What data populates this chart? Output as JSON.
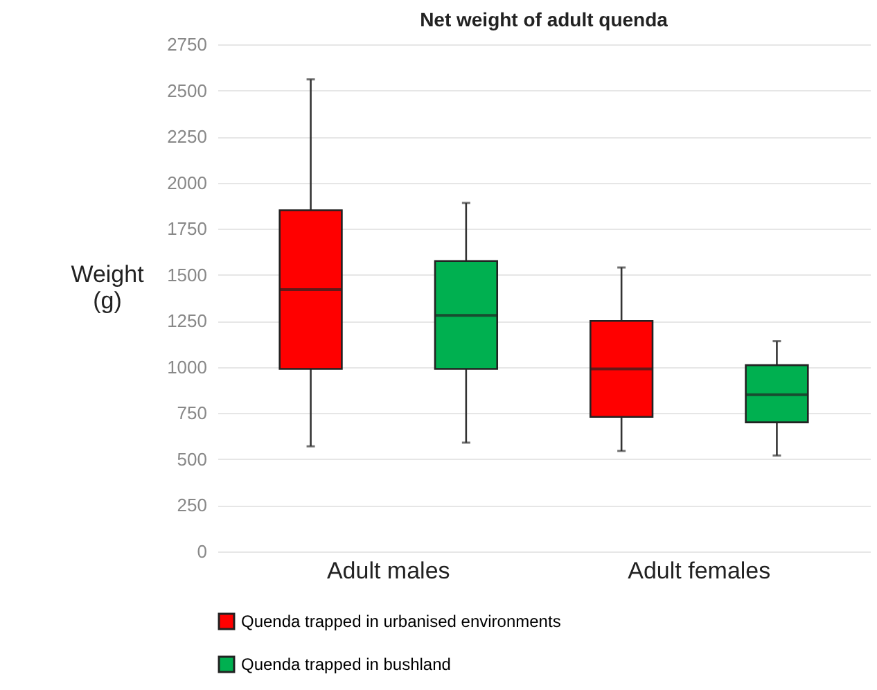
{
  "chart_data": {
    "type": "box",
    "title": "Net weight of adult quenda",
    "ylabel": "Weight\n(g)",
    "categories": [
      "Adult males",
      "Adult females"
    ],
    "series": [
      {
        "name": "Quenda trapped in urbanised environments",
        "color": "#ff0000",
        "boxes": [
          {
            "low": 570,
            "q1": 990,
            "median": 1420,
            "q3": 1850,
            "high": 2560
          },
          {
            "low": 545,
            "q1": 730,
            "median": 990,
            "q3": 1250,
            "high": 1540
          }
        ]
      },
      {
        "name": "Quenda trapped in bushland",
        "color": "#00b050",
        "boxes": [
          {
            "low": 590,
            "q1": 990,
            "median": 1280,
            "q3": 1575,
            "high": 1890
          },
          {
            "low": 520,
            "q1": 700,
            "median": 850,
            "q3": 1010,
            "high": 1140
          }
        ]
      }
    ],
    "ylim": [
      0,
      2750
    ],
    "yticks": [
      0,
      250,
      500,
      750,
      1000,
      1250,
      1500,
      1750,
      2000,
      2250,
      2500,
      2750
    ],
    "grid": "y",
    "legend": "bottom"
  }
}
